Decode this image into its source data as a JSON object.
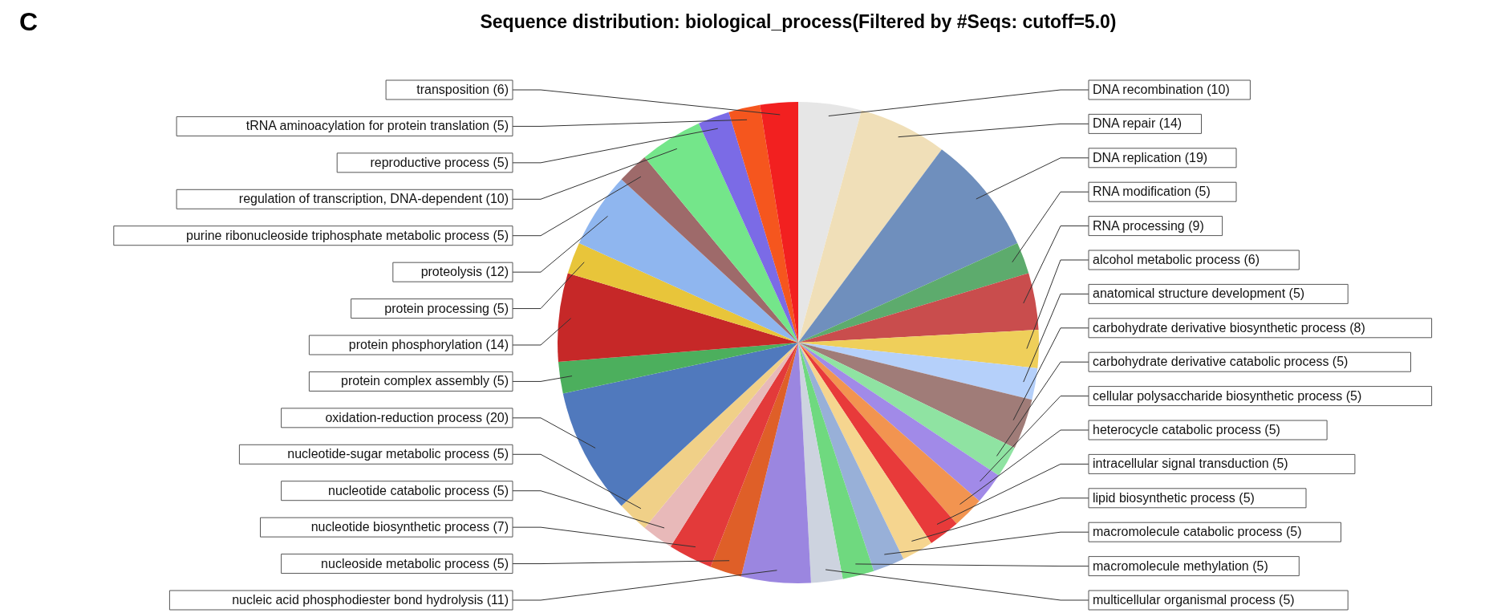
{
  "chart_data": {
    "type": "pie",
    "title": "Sequence distribution: biological_process(Filtered by #Seqs: cutoff=5.0)",
    "annotations": [
      "C"
    ],
    "categories": [
      "DNA recombination (10)",
      "DNA repair (14)",
      "DNA replication (19)",
      "RNA modification (5)",
      "RNA processing (9)",
      "alcohol metabolic process (6)",
      "anatomical structure development (5)",
      "carbohydrate derivative biosynthetic process (8)",
      "carbohydrate derivative catabolic process (5)",
      "cellular polysaccharide biosynthetic process (5)",
      "heterocycle catabolic process (5)",
      "intracellular signal transduction (5)",
      "lipid biosynthetic process (5)",
      "macromolecule catabolic process (5)",
      "macromolecule methylation (5)",
      "multicellular organismal process (5)",
      "nucleic acid phosphodiester bond hydrolysis (11)",
      "nucleoside metabolic process (5)",
      "nucleotide biosynthetic process (7)",
      "nucleotide catabolic process (5)",
      "nucleotide-sugar metabolic process (5)",
      "oxidation-reduction process (20)",
      "protein complex assembly (5)",
      "protein phosphorylation (14)",
      "protein processing (5)",
      "proteolysis (12)",
      "purine ribonucleoside triphosphate metabolic process (5)",
      "regulation of transcription, DNA-dependent (10)",
      "reproductive process (5)",
      "tRNA aminoacylation for protein translation (5)",
      "transposition (6)"
    ],
    "values": [
      10,
      14,
      19,
      5,
      9,
      6,
      5,
      8,
      5,
      5,
      5,
      5,
      5,
      5,
      5,
      5,
      11,
      5,
      7,
      5,
      5,
      20,
      5,
      14,
      5,
      12,
      5,
      10,
      5,
      5,
      6
    ],
    "colors": [
      "#e6e6e6",
      "#f0dfb8",
      "#6f8fbd",
      "#5dab6d",
      "#c94d4d",
      "#efcf5a",
      "#b5d0fa",
      "#a07c78",
      "#8fe3a2",
      "#a18ae8",
      "#f29450",
      "#e83a3a",
      "#f5d58f",
      "#98b0d8",
      "#6fd97f",
      "#cdd3df",
      "#9b86e0",
      "#df5f28",
      "#e33a3a",
      "#e8b9b9",
      "#f0d088",
      "#5079bd",
      "#4caf5d",
      "#c62828",
      "#e8c53a",
      "#8fb6ef",
      "#9e6a6a",
      "#74e68a",
      "#7b6be6",
      "#f5561e",
      "#f22020"
    ]
  }
}
